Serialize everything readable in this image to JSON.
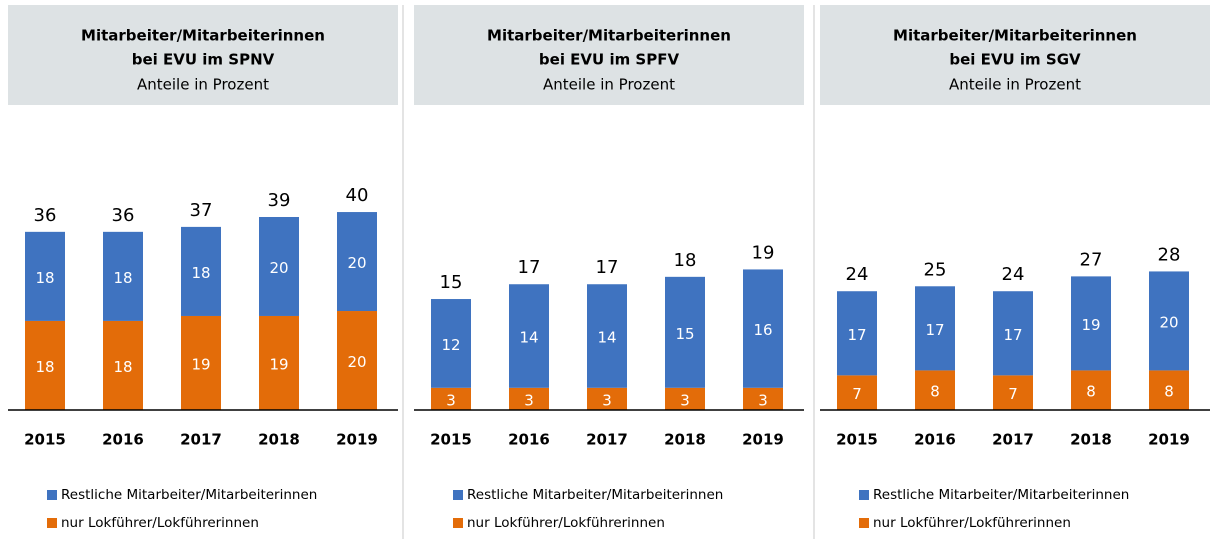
{
  "chart_data": [
    {
      "type": "bar",
      "stacked": true,
      "title": [
        "Mitarbeiter/Mitarbeiterinnen",
        "bei EVU im SPNV"
      ],
      "subtitle": "Anteile in Prozent",
      "categories": [
        "2015",
        "2016",
        "2017",
        "2018",
        "2019"
      ],
      "series": [
        {
          "name": "nur Lokführer/Lokführerinnen",
          "color": "#e36c09",
          "values": [
            18,
            18,
            19,
            19,
            20
          ]
        },
        {
          "name": "Restliche Mitarbeiter/Mitarbeiterinnen",
          "color": "#3f73c0",
          "values": [
            18,
            18,
            18,
            20,
            20
          ]
        }
      ],
      "totals": [
        36,
        36,
        37,
        39,
        40
      ],
      "ylim": [
        0,
        58.6
      ]
    },
    {
      "type": "bar",
      "stacked": true,
      "title": [
        "Mitarbeiter/Mitarbeiterinnen",
        "bei EVU im SPFV"
      ],
      "subtitle": "Anteile in Prozent",
      "categories": [
        "2015",
        "2016",
        "2017",
        "2018",
        "2019"
      ],
      "series": [
        {
          "name": "nur Lokführer/Lokführerinnen",
          "color": "#e36c09",
          "values": [
            3,
            3,
            3,
            3,
            3
          ]
        },
        {
          "name": "Restliche Mitarbeiter/Mitarbeiterinnen",
          "color": "#3f73c0",
          "values": [
            12,
            14,
            14,
            15,
            16
          ]
        }
      ],
      "totals": [
        15,
        17,
        17,
        18,
        19
      ],
      "ylim": [
        0,
        39.2
      ]
    },
    {
      "type": "bar",
      "stacked": true,
      "title": [
        "Mitarbeiter/Mitarbeiterinnen",
        "bei EVU im SGV"
      ],
      "subtitle": "Anteile in Prozent",
      "categories": [
        "2015",
        "2016",
        "2017",
        "2018",
        "2019"
      ],
      "series": [
        {
          "name": "nur Lokführer/Lokführerinnen",
          "color": "#e36c09",
          "values": [
            7,
            8,
            7,
            8,
            8
          ]
        },
        {
          "name": "Restliche Mitarbeiter/Mitarbeiterinnen",
          "color": "#3f73c0",
          "values": [
            17,
            17,
            17,
            19,
            20
          ]
        }
      ],
      "totals": [
        24,
        25,
        24,
        27,
        28
      ],
      "ylim": [
        0,
        58.6
      ]
    }
  ]
}
